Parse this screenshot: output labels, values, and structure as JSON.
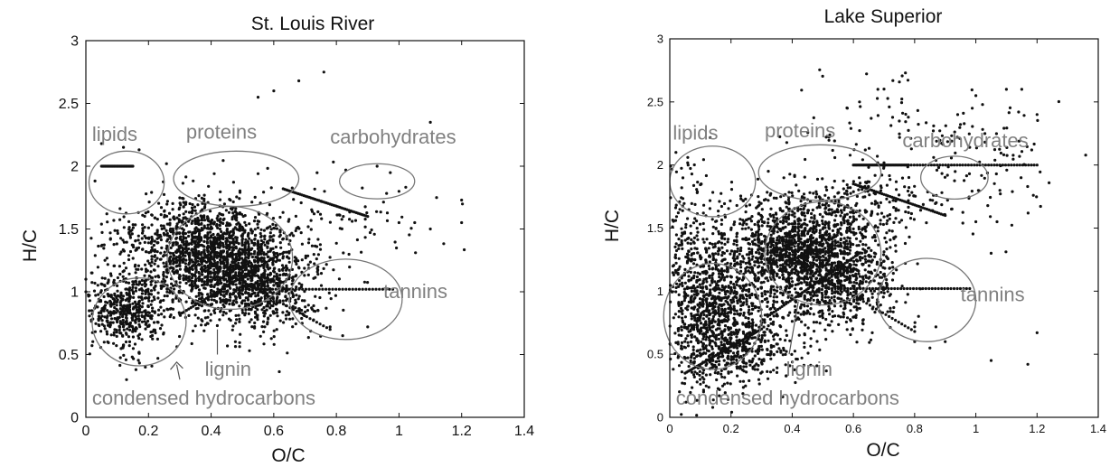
{
  "chart_data": [
    {
      "type": "scatter",
      "title": "St. Louis River",
      "xlabel": "O/C",
      "ylabel": "H/C",
      "xlim": [
        0,
        1.4
      ],
      "ylim": [
        0,
        3
      ],
      "xticks": [
        "0",
        "0.2",
        "0.4",
        "0.6",
        "0.8",
        "1",
        "1.2",
        "1.4"
      ],
      "yticks": [
        "0",
        "0.5",
        "1",
        "1.5",
        "2",
        "2.5",
        "3"
      ],
      "grid": false,
      "point_color": "#111111",
      "annotation_color": "#808080",
      "regions": [
        {
          "label": "lipids",
          "cx": 0.13,
          "cy": 1.87,
          "rx": 0.12,
          "ry": 0.25
        },
        {
          "label": "proteins",
          "cx": 0.48,
          "cy": 1.9,
          "rx": 0.2,
          "ry": 0.22
        },
        {
          "label": "carbohydrates",
          "cx": 0.93,
          "cy": 1.88,
          "rx": 0.12,
          "ry": 0.14
        },
        {
          "label": "tannins",
          "cx": 0.83,
          "cy": 0.94,
          "rx": 0.18,
          "ry": 0.32
        },
        {
          "label": "lignin",
          "cx": 0.46,
          "cy": 1.27,
          "rx": 0.2,
          "ry": 0.41
        },
        {
          "label": "condensed hydrocarbons",
          "cx": 0.17,
          "cy": 0.76,
          "rx": 0.15,
          "ry": 0.35
        }
      ],
      "clusters": [
        {
          "cx": 0.38,
          "cy": 1.3,
          "sx": 0.11,
          "sy": 0.22,
          "n": 1300
        },
        {
          "cx": 0.5,
          "cy": 1.15,
          "sx": 0.1,
          "sy": 0.22,
          "n": 700
        },
        {
          "cx": 0.13,
          "cy": 0.85,
          "sx": 0.06,
          "sy": 0.15,
          "n": 500
        },
        {
          "cx": 0.6,
          "cy": 0.95,
          "sx": 0.08,
          "sy": 0.15,
          "n": 250
        },
        {
          "cx": 0.15,
          "cy": 1.45,
          "sx": 0.05,
          "sy": 0.15,
          "n": 70
        },
        {
          "cx": 0.8,
          "cy": 1.5,
          "sx": 0.15,
          "sy": 0.18,
          "n": 90
        }
      ],
      "points": [
        [
          0.55,
          2.55
        ],
        [
          0.6,
          2.6
        ],
        [
          0.68,
          2.68
        ],
        [
          0.76,
          2.75
        ],
        [
          1.1,
          2.35
        ],
        [
          0.12,
          2.15
        ],
        [
          0.17,
          2.13
        ],
        [
          0.41,
          1.94
        ],
        [
          0.55,
          1.94
        ],
        [
          0.93,
          2.0
        ],
        [
          0.83,
          1.97
        ],
        [
          1.0,
          1.8
        ],
        [
          1.12,
          1.75
        ],
        [
          1.2,
          1.73
        ],
        [
          1.2,
          1.55
        ],
        [
          1.05,
          1.55
        ],
        [
          0.05,
          2.18
        ],
        [
          0.0,
          1.0
        ],
        [
          0.0,
          1.1
        ],
        [
          0.02,
          1.15
        ],
        [
          0.16,
          0.38
        ],
        [
          0.13,
          0.3
        ],
        [
          0.19,
          0.4
        ],
        [
          0.23,
          0.47
        ],
        [
          0.9,
          0.72
        ],
        [
          0.78,
          0.72
        ],
        [
          0.82,
          0.65
        ],
        [
          1.0,
          1.55
        ],
        [
          1.1,
          1.5
        ]
      ],
      "lines": [
        {
          "x0": 0.3,
          "y0": 1.35,
          "x1": 0.78,
          "y1": 0.7
        },
        {
          "x0": 0.3,
          "y0": 0.82,
          "x1": 0.62,
          "y1": 1.3
        },
        {
          "x0": 0.5,
          "y0": 1.02,
          "x1": 0.98,
          "y1": 1.02
        },
        {
          "x0": 0.63,
          "y0": 1.82,
          "x1": 0.9,
          "y1": 1.6
        },
        {
          "x0": 0.05,
          "y0": 2.0,
          "x1": 0.15,
          "y1": 2.0
        }
      ],
      "annotations": [
        {
          "text": "lipids",
          "x": 0.02,
          "y": 2.2,
          "size": 22
        },
        {
          "text": "proteins",
          "x": 0.32,
          "y": 2.22,
          "size": 22
        },
        {
          "text": "carbohydrates",
          "x": 0.78,
          "y": 2.18,
          "size": 22
        },
        {
          "text": "tannins",
          "x": 0.95,
          "y": 0.95,
          "size": 22
        },
        {
          "text": "lignin",
          "x": 0.38,
          "y": 0.33,
          "size": 22
        },
        {
          "text": "condensed hydrocarbons",
          "x": 0.02,
          "y": 0.1,
          "size": 22
        }
      ]
    },
    {
      "type": "scatter",
      "title": "Lake Superior",
      "xlabel": "O/C",
      "ylabel": "H/C",
      "xlim": [
        0,
        1.4
      ],
      "ylim": [
        0,
        3
      ],
      "xticks": [
        "0",
        "0.2",
        "0.4",
        "0.6",
        "0.8",
        "1",
        "1.2",
        "1.4"
      ],
      "yticks": [
        "0",
        "0.5",
        "1",
        "1.5",
        "2",
        "2.5",
        "3"
      ],
      "grid": false,
      "point_color": "#111111",
      "annotation_color": "#808080",
      "regions": [
        {
          "label": "lipids",
          "cx": 0.14,
          "cy": 1.87,
          "rx": 0.14,
          "ry": 0.28
        },
        {
          "label": "proteins",
          "cx": 0.49,
          "cy": 1.94,
          "rx": 0.2,
          "ry": 0.22
        },
        {
          "label": "carbohydrates",
          "cx": 0.93,
          "cy": 1.9,
          "rx": 0.11,
          "ry": 0.17
        },
        {
          "label": "tannins",
          "cx": 0.84,
          "cy": 0.93,
          "rx": 0.16,
          "ry": 0.33
        },
        {
          "label": "lignin",
          "cx": 0.5,
          "cy": 1.3,
          "rx": 0.19,
          "ry": 0.41
        },
        {
          "label": "condensed hydrocarbons",
          "cx": 0.14,
          "cy": 0.8,
          "rx": 0.16,
          "ry": 0.42
        }
      ],
      "clusters": [
        {
          "cx": 0.42,
          "cy": 1.32,
          "sx": 0.11,
          "sy": 0.22,
          "n": 1400
        },
        {
          "cx": 0.55,
          "cy": 1.1,
          "sx": 0.1,
          "sy": 0.2,
          "n": 600
        },
        {
          "cx": 0.15,
          "cy": 0.85,
          "sx": 0.08,
          "sy": 0.3,
          "n": 1100
        },
        {
          "cx": 0.25,
          "cy": 0.55,
          "sx": 0.1,
          "sy": 0.15,
          "n": 250
        },
        {
          "cx": 0.65,
          "cy": 1.65,
          "sx": 0.12,
          "sy": 0.15,
          "n": 180
        },
        {
          "cx": 1.0,
          "cy": 2.0,
          "sx": 0.12,
          "sy": 0.25,
          "n": 110
        },
        {
          "cx": 0.7,
          "cy": 2.3,
          "sx": 0.15,
          "sy": 0.2,
          "n": 60
        },
        {
          "cx": 0.05,
          "cy": 1.5,
          "sx": 0.04,
          "sy": 0.3,
          "n": 120
        }
      ],
      "points": [
        [
          0.77,
          2.73
        ],
        [
          0.68,
          2.6
        ],
        [
          0.62,
          2.5
        ],
        [
          0.58,
          2.45
        ],
        [
          1.1,
          2.6
        ],
        [
          1.15,
          2.6
        ],
        [
          1.2,
          2.4
        ],
        [
          1.0,
          2.55
        ],
        [
          1.05,
          0.45
        ],
        [
          1.17,
          0.42
        ],
        [
          1.2,
          0.67
        ],
        [
          0.8,
          0.6
        ],
        [
          0.9,
          0.6
        ],
        [
          0.85,
          0.55
        ],
        [
          0.02,
          2.1
        ],
        [
          0.06,
          2.0
        ],
        [
          1.05,
          1.3
        ],
        [
          1.0,
          1.55
        ]
      ],
      "lines": [
        {
          "x0": 0.33,
          "y0": 1.35,
          "x1": 0.8,
          "y1": 0.68
        },
        {
          "x0": 0.32,
          "y0": 0.8,
          "x1": 0.62,
          "y1": 1.3
        },
        {
          "x0": 0.52,
          "y0": 1.02,
          "x1": 0.98,
          "y1": 1.02
        },
        {
          "x0": 0.78,
          "y0": 2.0,
          "x1": 1.2,
          "y1": 2.0
        },
        {
          "x0": 0.6,
          "y0": 2.0,
          "x1": 0.78,
          "y1": 2.0
        },
        {
          "x0": 0.05,
          "y0": 0.35,
          "x1": 0.3,
          "y1": 0.7
        },
        {
          "x0": 0.6,
          "y0": 1.85,
          "x1": 0.9,
          "y1": 1.6
        }
      ],
      "annotations": [
        {
          "text": "lipids",
          "x": 0.01,
          "y": 2.2,
          "size": 22
        },
        {
          "text": "proteins",
          "x": 0.31,
          "y": 2.22,
          "size": 22
        },
        {
          "text": "carbohydrates",
          "x": 0.76,
          "y": 2.14,
          "size": 22
        },
        {
          "text": "tannins",
          "x": 0.95,
          "y": 0.92,
          "size": 22
        },
        {
          "text": "lignin",
          "x": 0.38,
          "y": 0.33,
          "size": 22
        },
        {
          "text": "condensed hydrocarbons",
          "x": 0.02,
          "y": 0.1,
          "size": 22
        }
      ]
    }
  ]
}
